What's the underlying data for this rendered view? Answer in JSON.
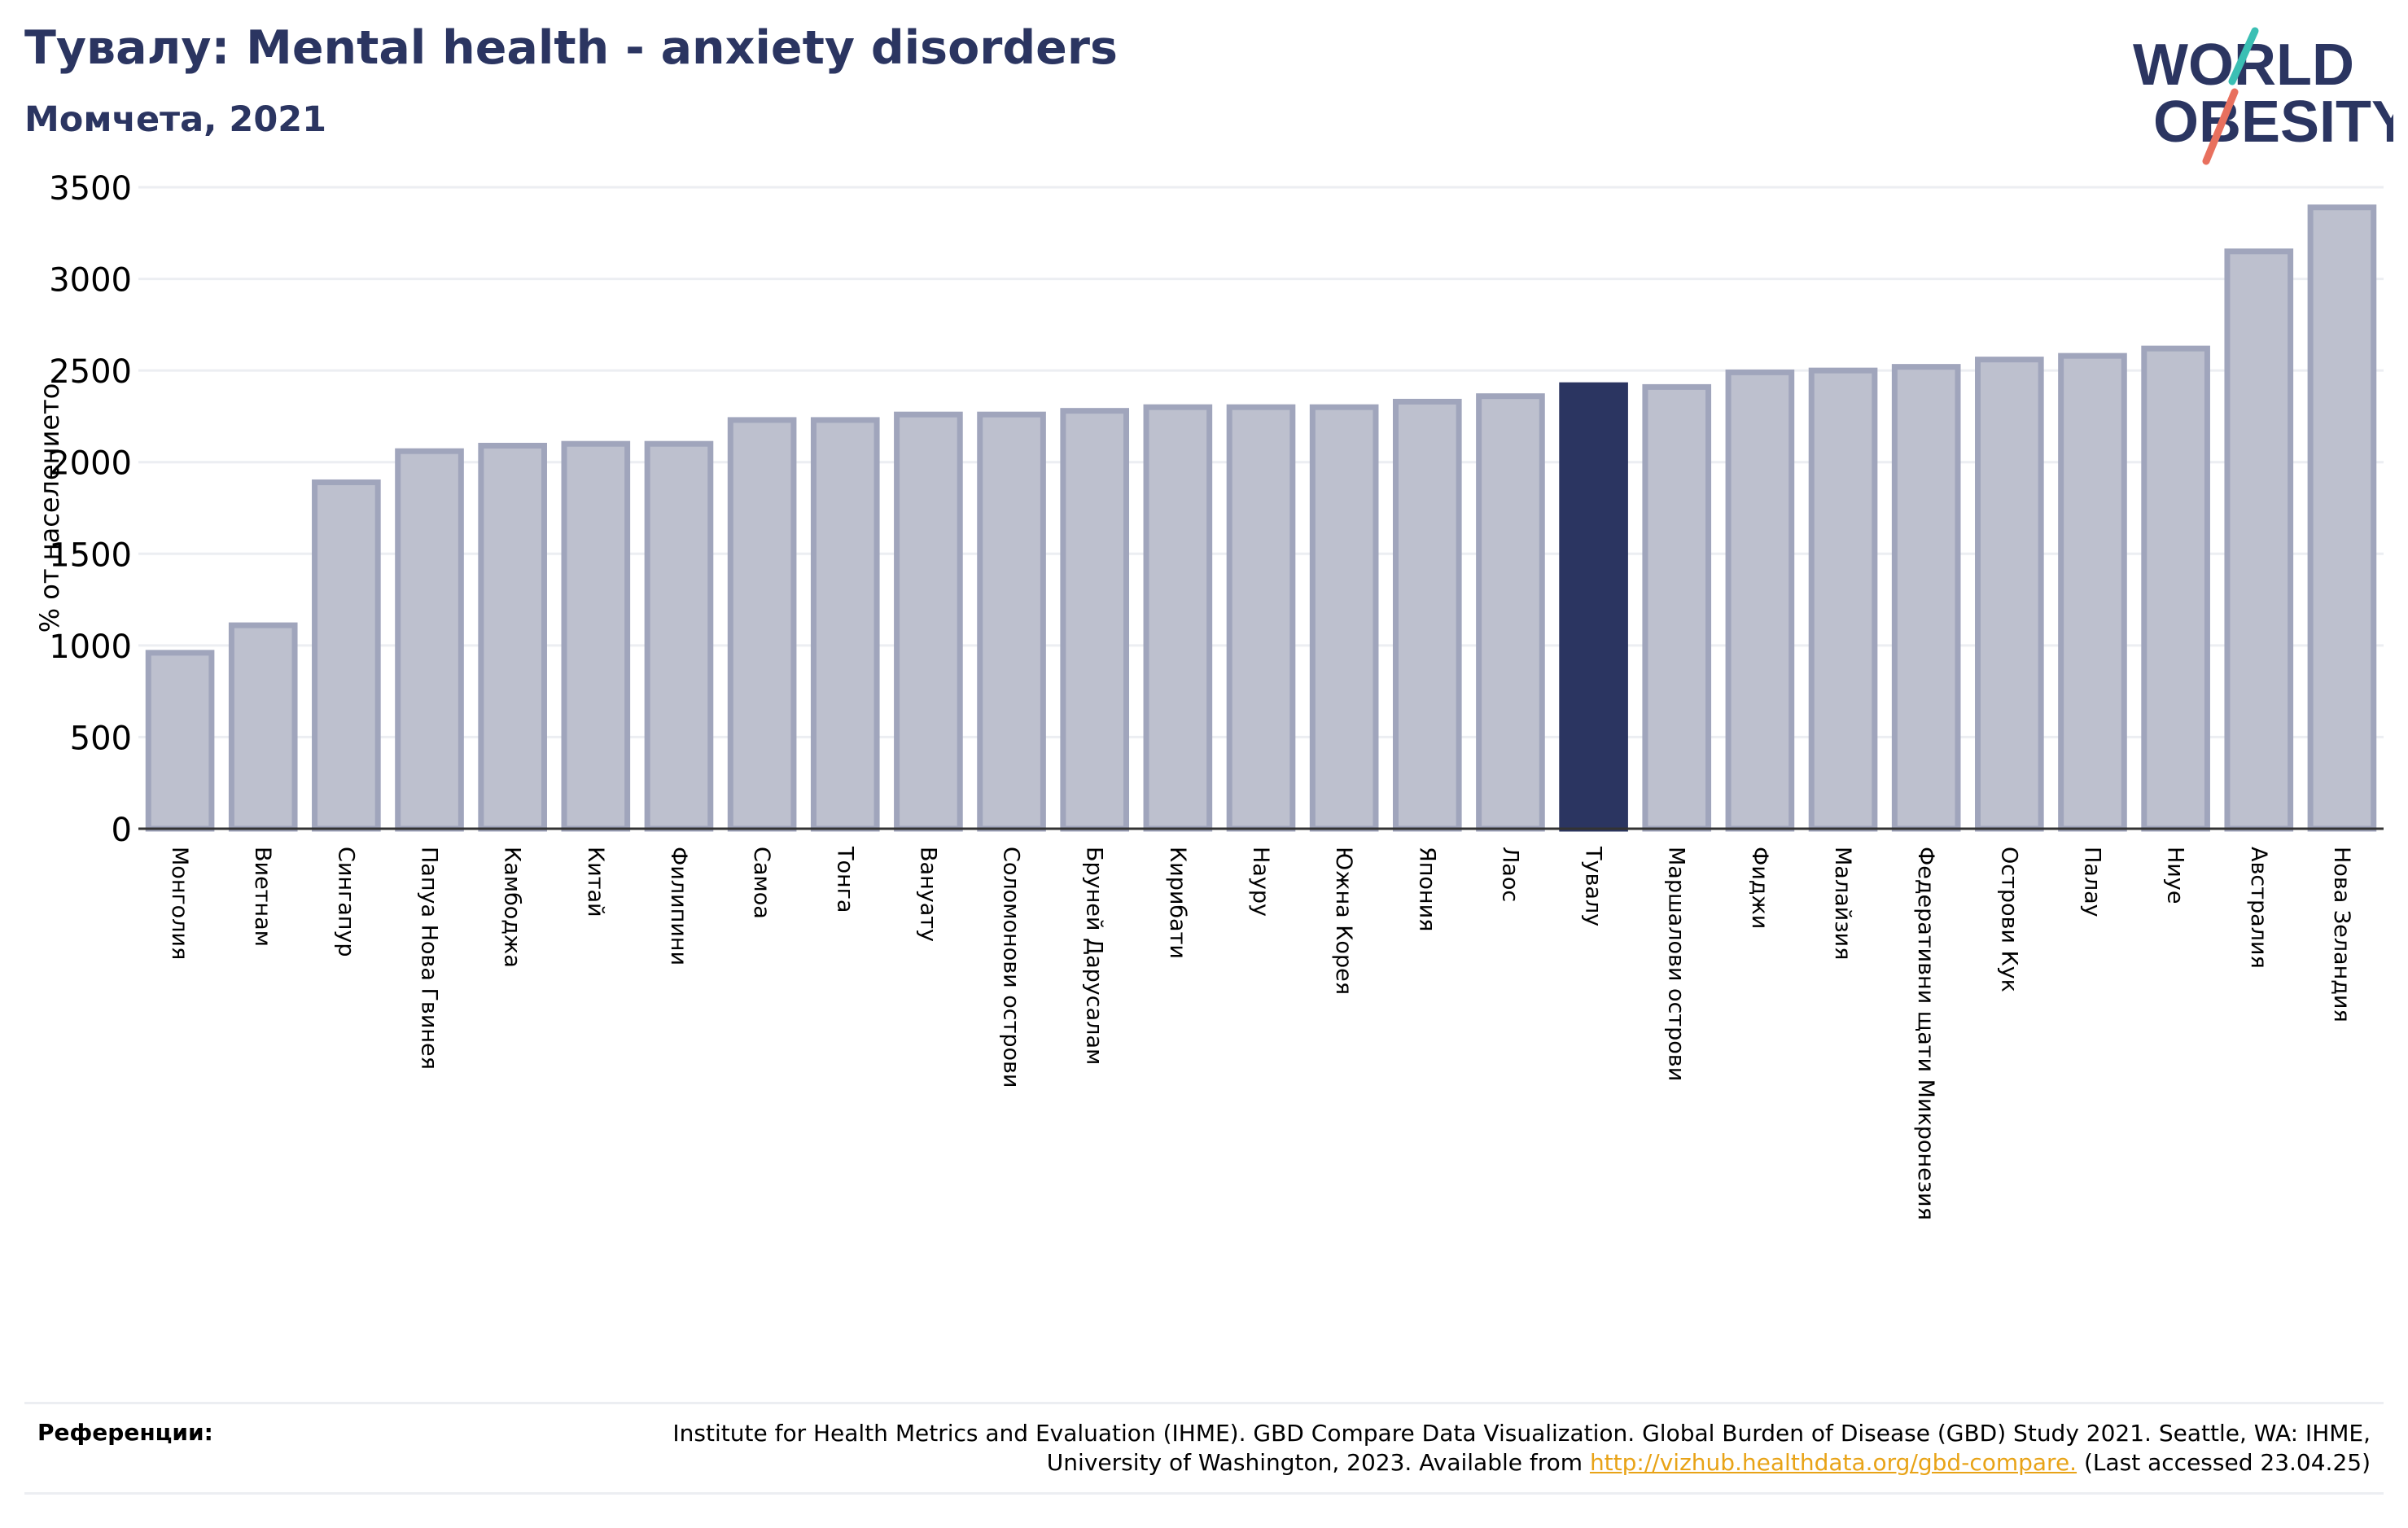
{
  "header": {
    "title": "Тувалу: Mental health - anxiety disorders",
    "subtitle": "Момчета, 2021"
  },
  "logo": {
    "line1": "WORLD",
    "line2": "OBESITY",
    "colors": {
      "text": "#2b3561",
      "accent_teal": "#3bbfb4",
      "accent_coral": "#e8705e"
    }
  },
  "colors": {
    "bar_default": "#bdc0ce",
    "bar_default_stroke": "#a0a5bc",
    "bar_highlight": "#2b3561",
    "grid": "#eceef2",
    "axis": "#333333"
  },
  "chart_data": {
    "type": "bar",
    "title": "Тувалу: Mental health - anxiety disorders",
    "subtitle": "Момчета, 2021",
    "xlabel": "",
    "ylabel": "% от населението",
    "ylim": [
      0,
      3500
    ],
    "yticks": [
      0,
      500,
      1000,
      1500,
      2000,
      2500,
      3000,
      3500
    ],
    "grid": true,
    "highlight": "Тувалу",
    "categories": [
      "Монголия",
      "Виетнам",
      "Сингапур",
      "Папуа Нова Гвинея",
      "Камбоджа",
      "Китай",
      "Филипини",
      "Самоа",
      "Тонга",
      "Вануату",
      "Соломонови острови",
      "Бруней Дарусалам",
      "Кирибати",
      "Науру",
      "Южна Корея",
      "Япония",
      "Лаос",
      "Тувалу",
      "Маршалови острови",
      "Фиджи",
      "Малайзия",
      "Федеративни щати Микронезия",
      "Острови Кук",
      "Палау",
      "Ниуе",
      "Австралия",
      "Нова Зеландия"
    ],
    "values": [
      960,
      1110,
      1890,
      2060,
      2090,
      2100,
      2100,
      2230,
      2230,
      2260,
      2260,
      2280,
      2300,
      2300,
      2300,
      2330,
      2360,
      2420,
      2410,
      2490,
      2500,
      2520,
      2560,
      2580,
      2620,
      3150,
      3390
    ]
  },
  "footer": {
    "label": "Референции:",
    "text_before": "Institute for Health Metrics and Evaluation (IHME). GBD Compare Data Visualization. Global Burden of Disease (GBD) Study 2021. Seattle, WA: IHME, University of Washington, 2023. Available from",
    "link": "http://vizhub.healthdata.org/gbd-compare.",
    "text_after": "(Last accessed 23.04.25)"
  }
}
